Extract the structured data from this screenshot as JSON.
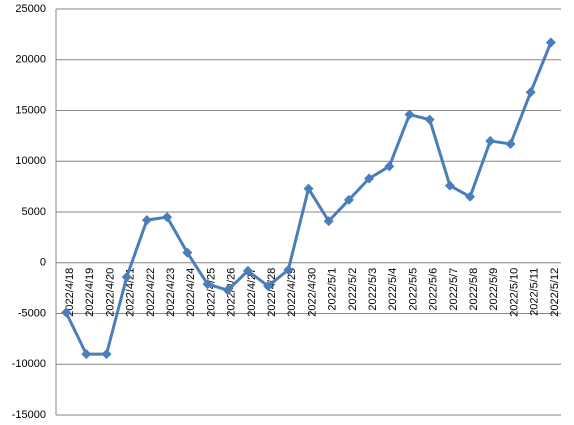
{
  "chart_data": {
    "type": "line",
    "categories": [
      "2022/4/18",
      "2022/4/19",
      "2022/4/20",
      "2022/4/21",
      "2022/4/22",
      "2022/4/23",
      "2022/4/24",
      "2022/4/25",
      "2022/4/26",
      "2022/4/27",
      "2022/4/28",
      "2022/4/29",
      "2022/4/30",
      "2022/5/1",
      "2022/5/2",
      "2022/5/3",
      "2022/5/4",
      "2022/5/5",
      "2022/5/6",
      "2022/5/7",
      "2022/5/8",
      "2022/5/9",
      "2022/5/10",
      "2022/5/11",
      "2022/5/12"
    ],
    "values": [
      -4900,
      -9000,
      -9000,
      -1400,
      4200,
      4500,
      1000,
      -2100,
      -2700,
      -800,
      -2300,
      -700,
      7300,
      4100,
      6200,
      8300,
      9500,
      14600,
      14100,
      7600,
      6500,
      12000,
      11700,
      16800,
      21700
    ],
    "color": "#4a7ebb",
    "ylim": [
      -15000,
      25000
    ],
    "yticks": [
      -15000,
      -10000,
      -5000,
      0,
      5000,
      10000,
      15000,
      20000,
      25000
    ],
    "grid": true
  }
}
